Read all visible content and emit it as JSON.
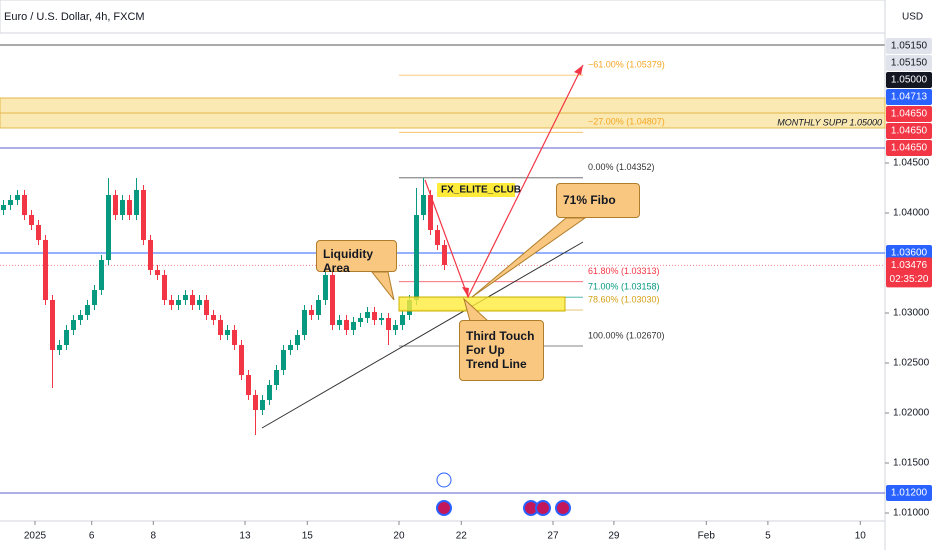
{
  "chart_data": {
    "type": "candlestick",
    "title": "Euro / U.S. Dollar, 4h, FXCM",
    "currency": "USD",
    "up_color": "#089981",
    "down_color": "#f23645",
    "grid": false,
    "xlim": [
      -0.5,
      125.93
    ],
    "ylim": [
      1.0093,
      1.0613
    ],
    "xticks": [
      {
        "value": 4.5,
        "label": "2025"
      },
      {
        "value": 12.6,
        "label": "6"
      },
      {
        "value": 21.4,
        "label": "8"
      },
      {
        "value": 34.5,
        "label": "13"
      },
      {
        "value": 43.4,
        "label": "15"
      },
      {
        "value": 56.5,
        "label": "20"
      },
      {
        "value": 65.4,
        "label": "22"
      },
      {
        "value": 78.5,
        "label": "27"
      },
      {
        "value": 87.2,
        "label": "29"
      },
      {
        "value": 100.4,
        "label": "Feb"
      },
      {
        "value": 109.2,
        "label": "5"
      },
      {
        "value": 122.4,
        "label": "10"
      }
    ],
    "yticks": [
      {
        "value": 1.045,
        "label": "1.04500"
      },
      {
        "value": 1.04,
        "label": "1.04000"
      },
      {
        "value": 1.03,
        "label": "1.03000"
      },
      {
        "value": 1.025,
        "label": "1.02500"
      },
      {
        "value": 1.02,
        "label": "1.02000"
      },
      {
        "value": 1.015,
        "label": "1.01500"
      },
      {
        "value": 1.01,
        "label": "1.01000"
      }
    ],
    "ohlc": {
      "open": [
        1.0403,
        1.0408,
        1.0413,
        1.0418,
        1.0398,
        1.0388,
        1.0373,
        1.0313,
        1.0263,
        1.0268,
        1.0283,
        1.0293,
        1.0298,
        1.0308,
        1.0323,
        1.0353,
        1.0418,
        1.0398,
        1.0413,
        1.0398,
        1.0423,
        1.0373,
        1.0343,
        1.0338,
        1.0313,
        1.0308,
        1.0313,
        1.0318,
        1.0308,
        1.0313,
        1.0298,
        1.0293,
        1.0278,
        1.0283,
        1.0268,
        1.0238,
        1.0218,
        1.0203,
        1.0213,
        1.0228,
        1.0243,
        1.0263,
        1.0268,
        1.0278,
        1.0303,
        1.0298,
        1.0313,
        1.0338,
        1.0288,
        1.0293,
        1.0283,
        1.0291,
        1.0295,
        1.0301,
        1.0293,
        1.0295,
        1.0283,
        1.0288,
        1.0298,
        1.0313,
        1.0398,
        1.0418,
        1.0383,
        1.0368
      ],
      "high": [
        1.0413,
        1.0418,
        1.0423,
        1.0423,
        1.0403,
        1.0393,
        1.0378,
        1.0318,
        1.0273,
        1.0288,
        1.0298,
        1.0303,
        1.0313,
        1.0328,
        1.0358,
        1.0435,
        1.0423,
        1.0418,
        1.0418,
        1.0435,
        1.0428,
        1.0378,
        1.0348,
        1.0343,
        1.0318,
        1.0318,
        1.0323,
        1.0323,
        1.0318,
        1.0318,
        1.0303,
        1.0298,
        1.0288,
        1.0288,
        1.0273,
        1.0243,
        1.0223,
        1.0218,
        1.0233,
        1.0248,
        1.0268,
        1.0273,
        1.0283,
        1.0308,
        1.0308,
        1.0318,
        1.036,
        1.0343,
        1.0298,
        1.0298,
        1.0296,
        1.03,
        1.0306,
        1.0306,
        1.03,
        1.03,
        1.0293,
        1.0303,
        1.0318,
        1.0425,
        1.0435,
        1.0423,
        1.0388,
        1.0373
      ],
      "low": [
        1.0398,
        1.0403,
        1.0408,
        1.0393,
        1.0383,
        1.0368,
        1.0308,
        1.0225,
        1.0258,
        1.0263,
        1.0278,
        1.0288,
        1.0293,
        1.0303,
        1.0318,
        1.0348,
        1.0393,
        1.0393,
        1.0393,
        1.0393,
        1.0368,
        1.0338,
        1.0333,
        1.0308,
        1.0303,
        1.0303,
        1.0308,
        1.0303,
        1.0303,
        1.0293,
        1.0288,
        1.0273,
        1.0273,
        1.0263,
        1.0233,
        1.0213,
        1.0178,
        1.0198,
        1.0208,
        1.0223,
        1.0238,
        1.0258,
        1.0263,
        1.0273,
        1.0293,
        1.0293,
        1.0308,
        1.0283,
        1.0283,
        1.0278,
        1.0278,
        1.0286,
        1.029,
        1.0288,
        1.0288,
        1.0268,
        1.0278,
        1.0283,
        1.0293,
        1.0308,
        1.0393,
        1.0378,
        1.0363,
        1.0343
      ],
      "close": [
        1.0408,
        1.0413,
        1.0418,
        1.0398,
        1.0388,
        1.0373,
        1.0313,
        1.0263,
        1.0268,
        1.0283,
        1.0293,
        1.0298,
        1.0308,
        1.0323,
        1.0353,
        1.0418,
        1.0398,
        1.0413,
        1.0398,
        1.0423,
        1.0373,
        1.0343,
        1.0338,
        1.0313,
        1.0308,
        1.0313,
        1.0318,
        1.0308,
        1.0313,
        1.0298,
        1.0293,
        1.0278,
        1.0283,
        1.0268,
        1.0238,
        1.0218,
        1.0203,
        1.0213,
        1.0228,
        1.0243,
        1.0263,
        1.0268,
        1.0278,
        1.0303,
        1.0298,
        1.0313,
        1.0338,
        1.0288,
        1.0293,
        1.0283,
        1.0291,
        1.0295,
        1.0301,
        1.0293,
        1.0295,
        1.0283,
        1.0288,
        1.0298,
        1.0313,
        1.0398,
        1.0418,
        1.0383,
        1.0368,
        1.0348
      ]
    },
    "hlines": [
      {
        "value": 1.0465,
        "color": "#5c5fc9"
      },
      {
        "value": 1.036,
        "color": "#2962ff"
      },
      {
        "value": 1.012,
        "color": "#5c5fc9"
      }
    ],
    "zone": {
      "top": 1.0515,
      "bottom": 1.0485,
      "label": "MONTHLY SUPP 1.05000",
      "color": "#f7d774"
    },
    "fib_levels": [
      {
        "price": 1.05379,
        "label": "−61.00% (1.05379)",
        "color": "#f5a623"
      },
      {
        "price": 1.04807,
        "label": "−27.00% (1.04807)",
        "color": "#f5a623"
      },
      {
        "price": 1.04352,
        "label": "0.00% (1.04352)",
        "color": "#333333"
      },
      {
        "price": 1.03313,
        "label": "61.80% (1.03313)",
        "color": "#f23645"
      },
      {
        "price": 1.03158,
        "label": "71.00% (1.03158)",
        "color": "#089981"
      },
      {
        "price": 1.0303,
        "label": "78.60% (1.03030)",
        "color": "#d4a017"
      },
      {
        "price": 1.0267,
        "label": "100.00% (1.02670)",
        "color": "#333333"
      }
    ],
    "price_tags": [
      {
        "value": 1.0515,
        "label": "1.05150",
        "bg": "#e0e3eb",
        "fg": "#131722"
      },
      {
        "value": 1.0515,
        "label": "1.05150",
        "bg": "#e0e3eb",
        "fg": "#131722"
      },
      {
        "value": 1.05,
        "label": "1.05000",
        "bg": "#131722",
        "fg": "#ffffff"
      },
      {
        "value": 1.04713,
        "label": "1.04713",
        "bg": "#2962ff",
        "fg": "#ffffff"
      },
      {
        "value": 1.0465,
        "label": "1.04650",
        "bg": "#f23645",
        "fg": "#ffffff"
      },
      {
        "value": 1.0465,
        "label": "1.04650",
        "bg": "#f23645",
        "fg": "#ffffff"
      },
      {
        "value": 1.0465,
        "label": "1.04650",
        "bg": "#f23645",
        "fg": "#ffffff"
      },
      {
        "value": 1.036,
        "label": "1.03600",
        "bg": "#2962ff",
        "fg": "#ffffff"
      },
      {
        "value": 1.012,
        "label": "1.01200",
        "bg": "#2962ff",
        "fg": "#ffffff"
      }
    ],
    "last_price": {
      "value": 1.03476,
      "label": "1.03476",
      "countdown": "02:35:20",
      "bg": "#f23645"
    },
    "annotations": {
      "fx_elite": "FX_ELITE_CLUB",
      "liquidity": "Liquidity Area",
      "fibo71": "71% Fibo",
      "third_touch": "Third Touch For Up Trend Line"
    }
  }
}
